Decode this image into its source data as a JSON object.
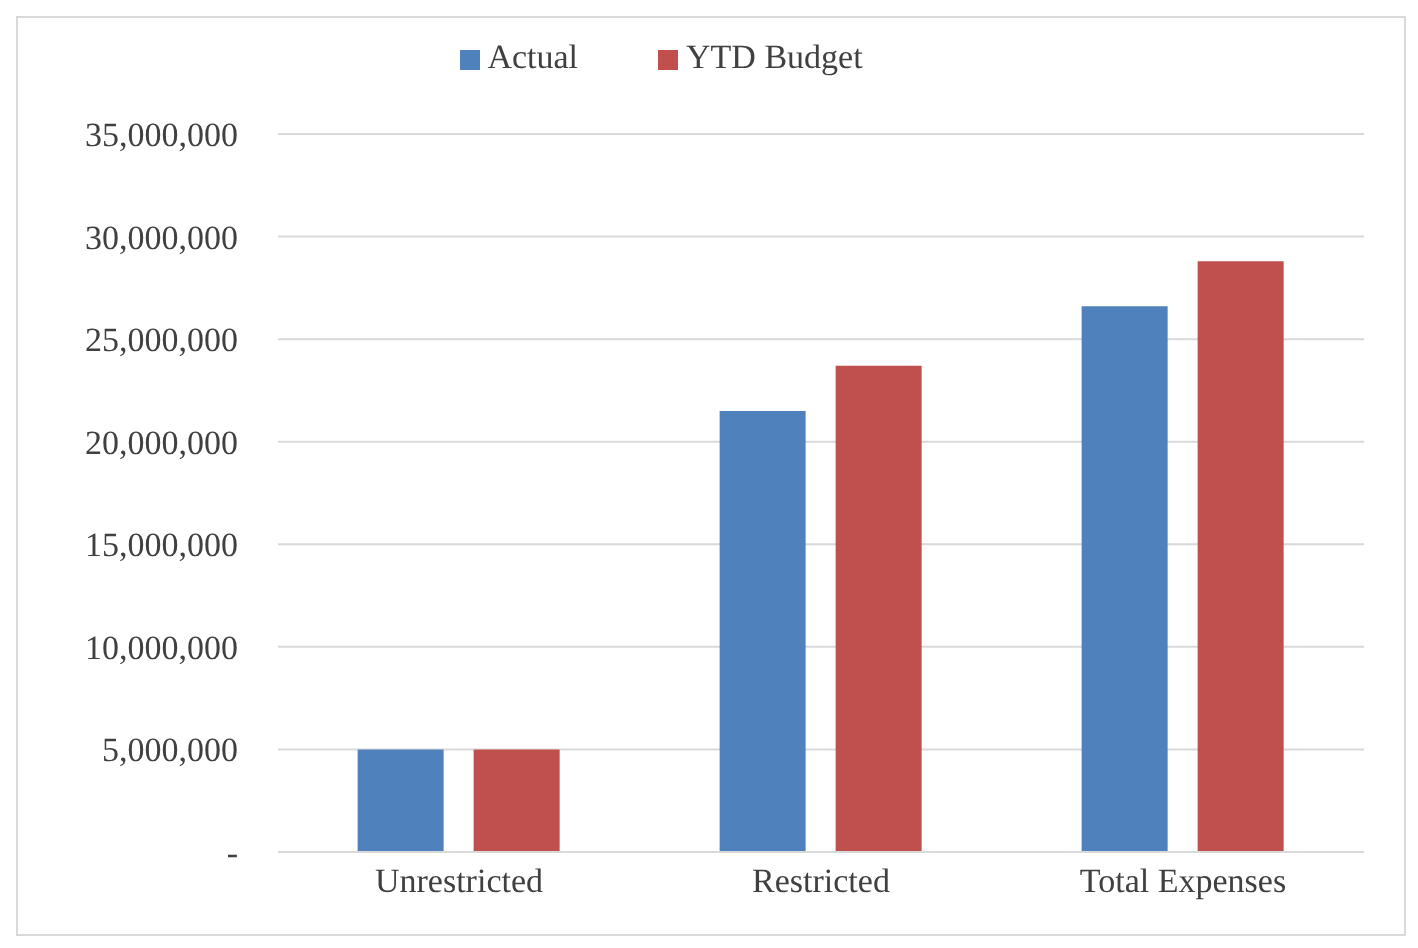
{
  "chart_data": {
    "type": "bar",
    "categories": [
      "Unrestricted",
      "Restricted",
      "Total Expenses"
    ],
    "series": [
      {
        "name": "Actual",
        "color": "#4f81bd",
        "values": [
          5000000,
          21500000,
          26600000
        ]
      },
      {
        "name": "YTD Budget",
        "color": "#c0504d",
        "values": [
          5000000,
          23700000,
          28800000
        ]
      }
    ],
    "ylim": [
      0,
      35000000
    ],
    "yticks": [
      {
        "value": 0,
        "label": "-"
      },
      {
        "value": 5000000,
        "label": "5,000,000"
      },
      {
        "value": 10000000,
        "label": "10,000,000"
      },
      {
        "value": 15000000,
        "label": "15,000,000"
      },
      {
        "value": 20000000,
        "label": "20,000,000"
      },
      {
        "value": 25000000,
        "label": "25,000,000"
      },
      {
        "value": 30000000,
        "label": "30,000,000"
      },
      {
        "value": 35000000,
        "label": "35,000,000"
      }
    ],
    "grid": "y",
    "legend": "top"
  }
}
